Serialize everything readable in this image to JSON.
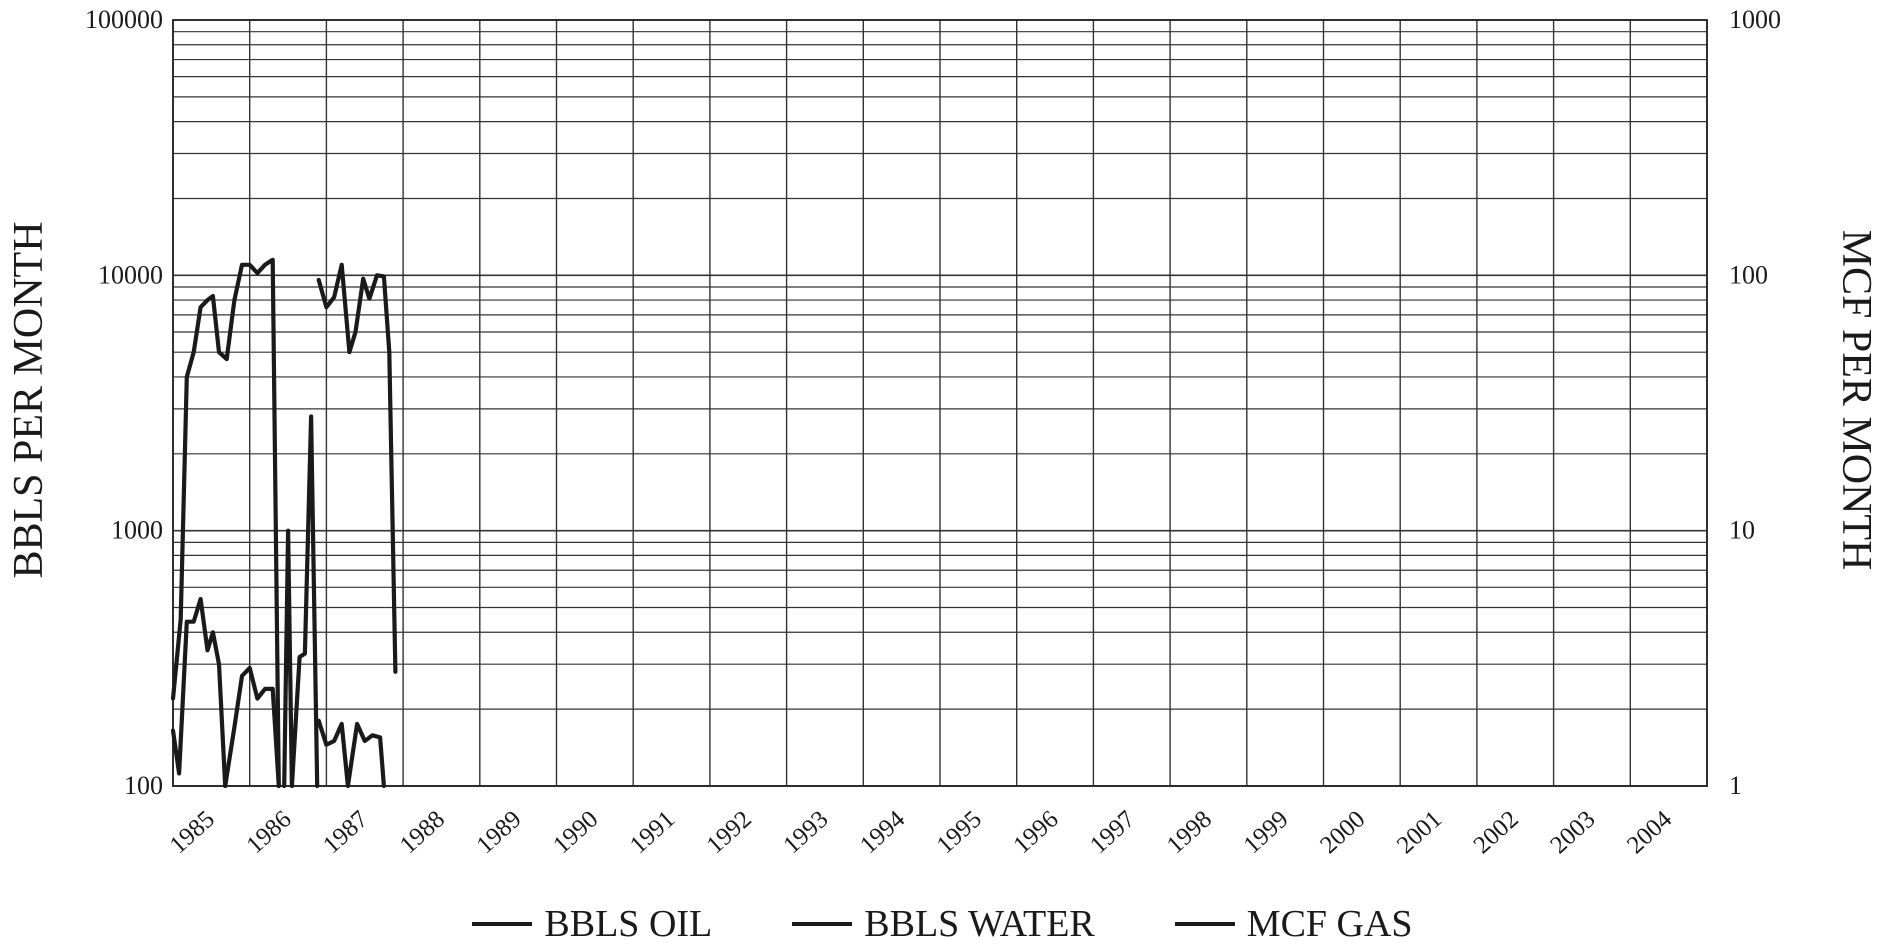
{
  "chart_data": {
    "type": "line",
    "title": "",
    "xlabel": "",
    "ylabel": "BBLS PER MONTH",
    "y2label": "MCF PER MONTH",
    "y_scale": "log",
    "ylim": [
      100,
      100000
    ],
    "y2lim": [
      1,
      1000
    ],
    "y_ticks": [
      "100000",
      "10000",
      "1000",
      "100"
    ],
    "y2_ticks": [
      "1000",
      "100",
      "10",
      "1"
    ],
    "x_ticks": [
      "1985",
      "1986",
      "1987",
      "1988",
      "1989",
      "1990",
      "1991",
      "1992",
      "1993",
      "1994",
      "1995",
      "1996",
      "1997",
      "1998",
      "1999",
      "2000",
      "2001",
      "2002",
      "2003",
      "2004"
    ],
    "xlim": [
      1985.0,
      2005.0
    ],
    "grid": true,
    "legend_position": "bottom",
    "series": [
      {
        "name": "BBLS OIL",
        "color": "#1a1a1a",
        "axis": "left",
        "points": [
          [
            1985.0,
            220
          ],
          [
            1985.1,
            450
          ],
          [
            1985.18,
            4000
          ],
          [
            1985.27,
            5000
          ],
          [
            1985.36,
            7500
          ],
          [
            1985.45,
            8000
          ],
          [
            1985.52,
            8300
          ],
          [
            1985.6,
            5000
          ],
          [
            1985.7,
            4700
          ],
          [
            1985.8,
            8000
          ],
          [
            1985.9,
            11000
          ],
          [
            1986.0,
            11000
          ],
          [
            1986.1,
            10200
          ],
          [
            1986.2,
            11000
          ],
          [
            1986.3,
            11500
          ],
          [
            1986.38,
            100
          ]
        ]
      },
      {
        "name": "BBLS WATER",
        "color": "#1a1a1a",
        "axis": "left",
        "points": [
          [
            1985.0,
            165
          ],
          [
            1985.08,
            112
          ],
          [
            1985.18,
            440
          ],
          [
            1985.27,
            440
          ],
          [
            1985.36,
            540
          ],
          [
            1985.45,
            340
          ],
          [
            1985.52,
            400
          ],
          [
            1985.6,
            300
          ],
          [
            1985.68,
            100
          ]
        ]
      },
      {
        "name": "MCF GAS",
        "color": "#1a1a1a",
        "axis": "left",
        "points": [
          [
            1985.68,
            100
          ],
          [
            1985.8,
            170
          ],
          [
            1985.9,
            270
          ],
          [
            1986.0,
            290
          ],
          [
            1986.1,
            220
          ],
          [
            1986.2,
            240
          ],
          [
            1986.3,
            240
          ],
          [
            1986.38,
            100
          ]
        ]
      },
      {
        "name": "",
        "color": "#1a1a1a",
        "axis": "left",
        "points": [
          [
            1986.45,
            100
          ],
          [
            1986.5,
            1000
          ],
          [
            1986.55,
            100
          ],
          [
            1986.65,
            320
          ],
          [
            1986.72,
            330
          ],
          [
            1986.8,
            2800
          ],
          [
            1986.88,
            100
          ]
        ]
      },
      {
        "name": "",
        "color": "#1a1a1a",
        "axis": "left",
        "points": [
          [
            1986.9,
            9600
          ],
          [
            1987.0,
            7500
          ],
          [
            1987.1,
            8200
          ],
          [
            1987.2,
            11000
          ],
          [
            1987.3,
            5000
          ],
          [
            1987.38,
            6000
          ],
          [
            1987.48,
            9700
          ],
          [
            1987.56,
            8100
          ],
          [
            1987.66,
            10000
          ],
          [
            1987.75,
            9900
          ],
          [
            1987.82,
            5000
          ],
          [
            1987.9,
            280
          ]
        ]
      },
      {
        "name": "",
        "color": "#1a1a1a",
        "axis": "left",
        "points": [
          [
            1986.9,
            180
          ],
          [
            1987.0,
            145
          ],
          [
            1987.1,
            150
          ],
          [
            1987.2,
            175
          ],
          [
            1987.28,
            100
          ],
          [
            1987.4,
            175
          ],
          [
            1987.5,
            150
          ],
          [
            1987.6,
            158
          ],
          [
            1987.7,
            155
          ],
          [
            1987.75,
            100
          ]
        ]
      }
    ]
  }
}
